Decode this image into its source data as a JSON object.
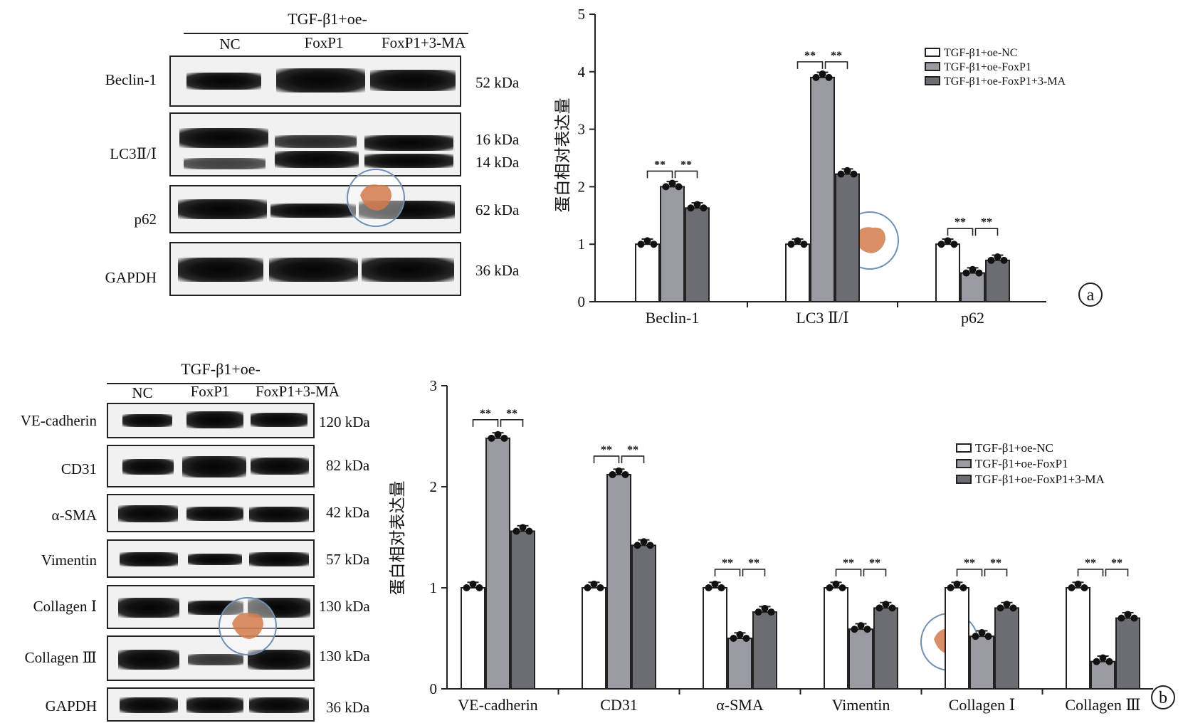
{
  "panel_a": {
    "blot": {
      "header": "TGF-β1+oe-",
      "lanes": [
        "NC",
        "FoxP1",
        "FoxP1+3-MA"
      ],
      "rows": [
        {
          "label": "Beclin-1",
          "kda": [
            "52 kDa"
          ]
        },
        {
          "label": "LC3Ⅱ/Ⅰ",
          "kda": [
            "16 kDa",
            "14 kDa"
          ]
        },
        {
          "label": "p62",
          "kda": [
            "62 kDa"
          ]
        },
        {
          "label": "GAPDH",
          "kda": [
            "36 kDa"
          ]
        }
      ]
    },
    "panel_label": "a"
  },
  "panel_b": {
    "blot": {
      "header": "TGF-β1+oe-",
      "lanes": [
        "NC",
        "FoxP1",
        "FoxP1+3-MA"
      ],
      "rows": [
        {
          "label": "VE-cadherin",
          "kda": [
            "120 kDa"
          ]
        },
        {
          "label": "CD31",
          "kda": [
            "82 kDa"
          ]
        },
        {
          "label": "α-SMA",
          "kda": [
            "42 kDa"
          ]
        },
        {
          "label": "Vimentin",
          "kda": [
            "57 kDa"
          ]
        },
        {
          "label": "Collagen Ⅰ",
          "kda": [
            "130 kDa"
          ]
        },
        {
          "label": "Collagen Ⅲ",
          "kda": [
            "130 kDa"
          ]
        },
        {
          "label": "GAPDH",
          "kda": [
            "36 kDa"
          ]
        }
      ]
    },
    "panel_label": "b"
  },
  "colors": {
    "nc": "#ffffff",
    "foxp1": "#9a9aa2",
    "foxp1_3ma": "#6b6d72",
    "axis": "#222222"
  },
  "chart_data": [
    {
      "type": "bar",
      "title": "",
      "xlabel": "",
      "ylabel": "蛋白相对表达量",
      "ylim": [
        0,
        5
      ],
      "yticks": [
        "0",
        "1",
        "2",
        "3",
        "4",
        "5"
      ],
      "categories": [
        "Beclin-1",
        "LC3 Ⅱ/Ⅰ",
        "p62"
      ],
      "series": [
        {
          "name": "TGF-β1+oe-NC",
          "values": [
            1.0,
            1.0,
            1.0
          ]
        },
        {
          "name": "TGF-β1+oe-FoxP1",
          "values": [
            2.0,
            3.9,
            0.5
          ]
        },
        {
          "name": "TGF-β1+oe-FoxP1+3-MA",
          "values": [
            1.63,
            2.22,
            0.72
          ]
        }
      ],
      "significance": [
        {
          "category": "Beclin-1",
          "marks": [
            "**",
            "**"
          ]
        },
        {
          "category": "LC3 Ⅱ/Ⅰ",
          "marks": [
            "**",
            "**"
          ]
        },
        {
          "category": "p62",
          "marks": [
            "**",
            "**"
          ]
        }
      ],
      "legend": "top-right"
    },
    {
      "type": "bar",
      "title": "",
      "xlabel": "",
      "ylabel": "蛋白相对表达量",
      "ylim": [
        0,
        3
      ],
      "yticks": [
        "0",
        "1",
        "2",
        "3"
      ],
      "categories": [
        "VE-cadherin",
        "CD31",
        "α-SMA",
        "Vimentin",
        "Collagen Ⅰ",
        "Collagen Ⅲ"
      ],
      "series": [
        {
          "name": "TGF-β1+oe-NC",
          "values": [
            1.0,
            1.0,
            1.0,
            1.0,
            1.0,
            1.0
          ]
        },
        {
          "name": "TGF-β1+oe-FoxP1",
          "values": [
            2.48,
            2.12,
            0.5,
            0.59,
            0.52,
            0.27
          ]
        },
        {
          "name": "TGF-β1+oe-FoxP1+3-MA",
          "values": [
            1.56,
            1.42,
            0.76,
            0.8,
            0.8,
            0.7
          ]
        }
      ],
      "significance": [
        {
          "category": "VE-cadherin",
          "marks": [
            "**",
            "**"
          ]
        },
        {
          "category": "CD31",
          "marks": [
            "**",
            "**"
          ]
        },
        {
          "category": "α-SMA",
          "marks": [
            "**",
            "**"
          ]
        },
        {
          "category": "Vimentin",
          "marks": [
            "**",
            "**"
          ]
        },
        {
          "category": "Collagen Ⅰ",
          "marks": [
            "**",
            "**"
          ]
        },
        {
          "category": "Collagen Ⅲ",
          "marks": [
            "**",
            "**"
          ]
        }
      ],
      "legend": "top-right"
    }
  ]
}
